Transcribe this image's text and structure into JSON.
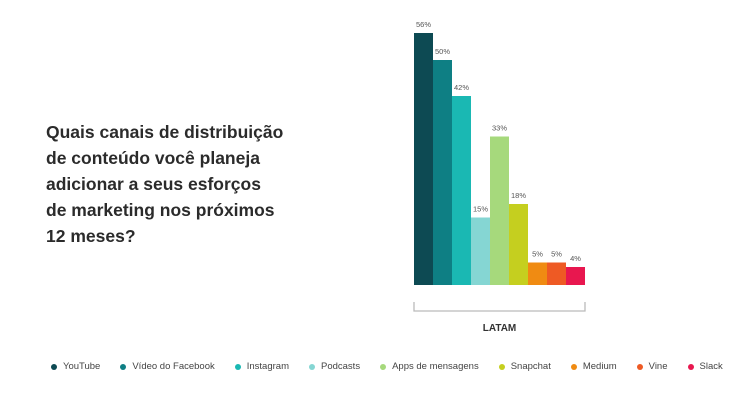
{
  "question": {
    "lines": [
      "Quais canais de distribuição",
      "de conteúdo você planeja",
      "adicionar a seus esforços",
      "de marketing nos próximos",
      "12 meses?"
    ]
  },
  "chart_data": {
    "type": "bar",
    "group_label": "LATAM",
    "ylim": [
      0,
      56
    ],
    "grid": false,
    "legend_position": "bottom",
    "series": [
      {
        "name": "YouTube",
        "value": 56,
        "label": "56%",
        "color": "#0d4a53"
      },
      {
        "name": "Vídeo do Facebook",
        "value": 50,
        "label": "50%",
        "color": "#0e7f84"
      },
      {
        "name": "Instagram",
        "value": 42,
        "label": "42%",
        "color": "#1ab8b3"
      },
      {
        "name": "Podcasts",
        "value": 15,
        "label": "15%",
        "color": "#85d6d3"
      },
      {
        "name": "Apps de mensagens",
        "value": 33,
        "label": "33%",
        "color": "#a6d97c"
      },
      {
        "name": "Snapchat",
        "value": 18,
        "label": "18%",
        "color": "#c5cf1f"
      },
      {
        "name": "Medium",
        "value": 5,
        "label": "5%",
        "color": "#f08b12"
      },
      {
        "name": "Vine",
        "value": 5,
        "label": "5%",
        "color": "#ee5a24"
      },
      {
        "name": "Slack",
        "value": 4,
        "label": "4%",
        "color": "#e8174f"
      }
    ]
  }
}
